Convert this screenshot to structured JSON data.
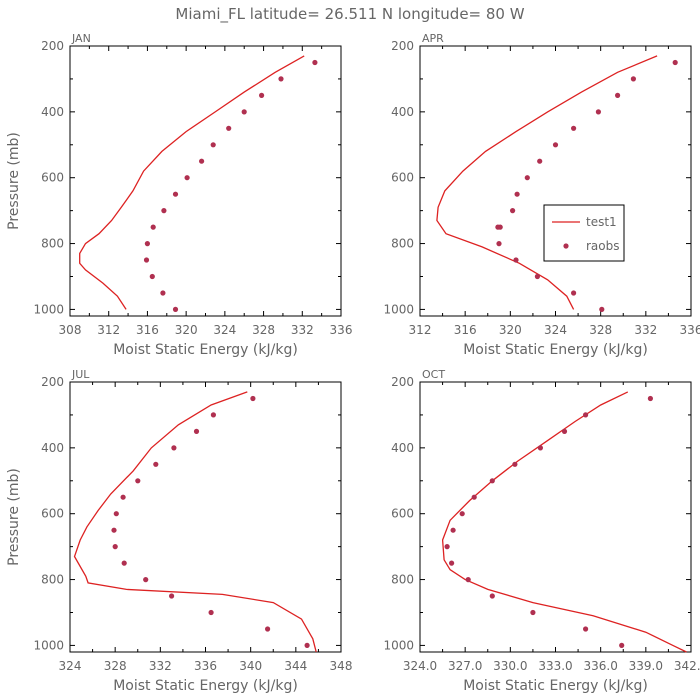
{
  "title": "Miami_FL   latitude= 26.511 N longitude= 80 W",
  "legend": {
    "model_label": "test1",
    "obs_label": "raobs"
  },
  "colors": {
    "line": "#dd2222",
    "dots": "#b03050",
    "axes": "#000000",
    "text": "#666666"
  },
  "chart_data": [
    {
      "type": "line",
      "panel": "JAN",
      "xlabel": "Moist Static Energy (kJ/kg)",
      "ylabel": "Pressure (mb)",
      "xlim": [
        308,
        336
      ],
      "ylim": [
        1020,
        200
      ],
      "xticks": [
        308,
        312,
        316,
        320,
        324,
        328,
        332,
        336
      ],
      "xtick_labels": [
        "308",
        "312",
        "316",
        "320",
        "324",
        "328",
        "332",
        "336"
      ],
      "yticks": [
        200,
        400,
        600,
        800,
        1000
      ],
      "ytick_labels": [
        "200",
        "400",
        "600",
        "800",
        "1000"
      ],
      "series": [
        {
          "name": "test1",
          "kind": "line",
          "x": [
            332.2,
            329.2,
            326.0,
            323.0,
            320.0,
            317.5,
            315.6,
            314.5,
            313.3,
            312.3,
            311.0,
            309.6,
            309.0,
            309.0,
            309.6,
            311.4,
            312.9,
            313.8
          ],
          "y": [
            230,
            280,
            340,
            400,
            460,
            520,
            580,
            640,
            690,
            730,
            770,
            800,
            830,
            860,
            880,
            920,
            960,
            1000
          ]
        },
        {
          "name": "raobs",
          "kind": "scatter",
          "x": [
            333.3,
            329.8,
            327.8,
            326.0,
            324.4,
            322.8,
            321.6,
            320.1,
            318.9,
            317.7,
            316.6,
            316.0,
            315.9,
            316.5,
            317.6,
            318.9
          ],
          "y": [
            250,
            300,
            350,
            400,
            450,
            500,
            550,
            600,
            650,
            700,
            750,
            800,
            850,
            900,
            950,
            1000
          ]
        }
      ]
    },
    {
      "type": "line",
      "panel": "APR",
      "xlabel": "Moist Static Energy (kJ/kg)",
      "ylabel": "",
      "xlim": [
        312,
        336
      ],
      "ylim": [
        1020,
        200
      ],
      "xticks": [
        312,
        316,
        320,
        324,
        328,
        332,
        336
      ],
      "xtick_labels": [
        "312",
        "316",
        "320",
        "324",
        "328",
        "332",
        "336"
      ],
      "yticks": [
        200,
        400,
        600,
        800,
        1000
      ],
      "ytick_labels": [
        "200",
        "400",
        "600",
        "800",
        "1000"
      ],
      "legend_position": "right",
      "series": [
        {
          "name": "test1",
          "kind": "line",
          "x": [
            333.0,
            329.5,
            326.3,
            323.3,
            320.5,
            317.8,
            315.8,
            314.2,
            313.6,
            313.5,
            314.3,
            317.5,
            320.8,
            323.3,
            325.0,
            325.6
          ],
          "y": [
            230,
            280,
            340,
            400,
            460,
            520,
            580,
            640,
            690,
            730,
            770,
            810,
            860,
            910,
            960,
            1000
          ]
        },
        {
          "name": "raobs",
          "kind": "scatter",
          "x": [
            334.6,
            330.9,
            329.5,
            327.8,
            325.6,
            324.0,
            322.6,
            321.5,
            320.6,
            320.2,
            319.1,
            318.9,
            319.0,
            320.5,
            322.4,
            325.6,
            328.1
          ],
          "y": [
            250,
            300,
            350,
            400,
            450,
            500,
            550,
            600,
            650,
            700,
            750,
            750,
            800,
            850,
            900,
            950,
            1000
          ]
        }
      ]
    },
    {
      "type": "line",
      "panel": "JUL",
      "xlabel": "Moist Static Energy (kJ/kg)",
      "ylabel": "Pressure (mb)",
      "xlim": [
        324,
        348
      ],
      "ylim": [
        1020,
        200
      ],
      "xticks": [
        324,
        328,
        332,
        336,
        340,
        344,
        348
      ],
      "xtick_labels": [
        "324",
        "328",
        "332",
        "336",
        "340",
        "344",
        "348"
      ],
      "yticks": [
        200,
        400,
        600,
        800,
        1000
      ],
      "ytick_labels": [
        "200",
        "400",
        "600",
        "800",
        "1000"
      ],
      "series": [
        {
          "name": "test1",
          "kind": "line",
          "x": [
            339.7,
            336.5,
            333.6,
            331.2,
            329.6,
            327.6,
            326.5,
            325.5,
            324.9,
            324.4,
            325.4,
            325.6,
            329.0,
            337.5,
            342.0,
            344.5,
            345.5,
            345.8
          ],
          "y": [
            230,
            270,
            330,
            400,
            470,
            540,
            590,
            640,
            680,
            730,
            790,
            810,
            830,
            845,
            870,
            920,
            980,
            1020
          ]
        },
        {
          "name": "raobs",
          "kind": "scatter",
          "x": [
            340.2,
            336.7,
            335.2,
            333.2,
            331.6,
            330.0,
            328.7,
            328.1,
            327.9,
            328.0,
            328.8,
            330.7,
            333.0,
            336.5,
            341.5,
            345.0
          ],
          "y": [
            250,
            300,
            350,
            400,
            450,
            500,
            550,
            600,
            650,
            700,
            750,
            800,
            850,
            900,
            950,
            1000
          ]
        }
      ]
    },
    {
      "type": "line",
      "panel": "OCT",
      "xlabel": "Moist Static Energy (kJ/kg)",
      "ylabel": "",
      "xlim": [
        324,
        342
      ],
      "ylim": [
        1020,
        200
      ],
      "xticks": [
        324,
        327,
        330,
        333,
        336,
        339,
        342
      ],
      "xtick_labels": [
        "324.0",
        "327.0",
        "330.0",
        "333.0",
        "336.0",
        "339.0",
        "342.0"
      ],
      "yticks": [
        200,
        400,
        600,
        800,
        1000
      ],
      "ytick_labels": [
        "200",
        "400",
        "600",
        "800",
        "1000"
      ],
      "series": [
        {
          "name": "test1",
          "kind": "line",
          "x": [
            337.8,
            336.0,
            334.3,
            332.4,
            330.5,
            328.8,
            327.3,
            326.0,
            325.5,
            325.6,
            326.0,
            327.0,
            328.5,
            331.5,
            335.5,
            339.0,
            340.8,
            341.7
          ],
          "y": [
            230,
            270,
            320,
            380,
            440,
            500,
            560,
            620,
            680,
            740,
            770,
            800,
            830,
            870,
            910,
            960,
            1000,
            1020
          ]
        },
        {
          "name": "raobs",
          "kind": "scatter",
          "x": [
            339.3,
            335.0,
            333.6,
            332.0,
            330.3,
            328.8,
            327.6,
            326.8,
            326.2,
            325.8,
            326.1,
            327.2,
            328.8,
            331.5,
            335.0,
            337.4
          ],
          "y": [
            250,
            300,
            350,
            400,
            450,
            500,
            550,
            600,
            650,
            700,
            750,
            800,
            850,
            900,
            950,
            1000
          ]
        }
      ]
    }
  ]
}
